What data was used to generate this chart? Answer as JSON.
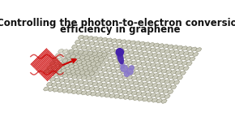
{
  "title_line1": "Controlling the photon-to-electron conversion",
  "title_line2": "efficiency in graphene",
  "title_fontsize": 8.5,
  "title_color": "#111111",
  "bg_color": "#ffffff",
  "laser_color": "#cc0000",
  "arrow_color": "#cc0000",
  "electron_color_dark": "#4422aa",
  "electron_color_light": "#8877cc",
  "hex_face": "#c8c8b8",
  "hex_edge": "#888870",
  "hex_face2": "#d5d5c5",
  "hex_edge2": "#aaaaaa"
}
